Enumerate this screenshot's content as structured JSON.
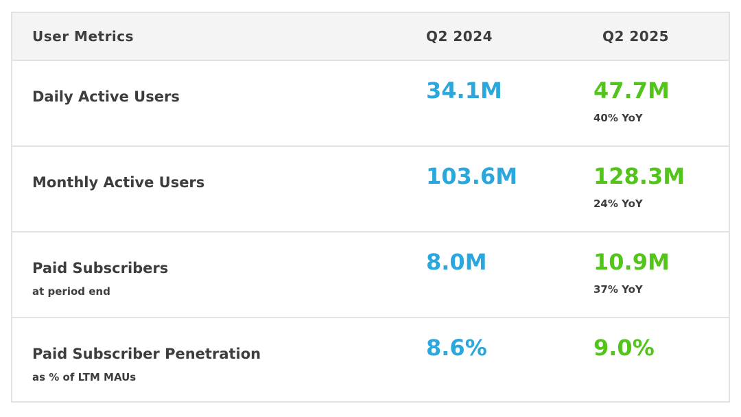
{
  "header": {
    "metric": "User Metrics",
    "col1": "Q2 2024",
    "col2": "Q2 2025"
  },
  "rows": [
    {
      "label": "Daily Active Users",
      "sub": "",
      "prev": "34.1M",
      "curr": "47.7M",
      "yoy": "40% YoY"
    },
    {
      "label": "Monthly Active Users",
      "sub": "",
      "prev": "103.6M",
      "curr": "128.3M",
      "yoy": "24% YoY"
    },
    {
      "label": "Paid Subscribers",
      "sub": "at period end",
      "prev": "8.0M",
      "curr": "10.9M",
      "yoy": "37% YoY"
    },
    {
      "label": "Paid Subscriber Penetration",
      "sub": "as % of LTM MAUs",
      "prev": "8.6%",
      "curr": "9.0%",
      "yoy": ""
    }
  ],
  "colors": {
    "prev_value": "#2aa7dd",
    "curr_value": "#52c41a",
    "text": "#3d3d3d",
    "header_bg": "#f4f4f4",
    "border": "#e3e3e3"
  }
}
